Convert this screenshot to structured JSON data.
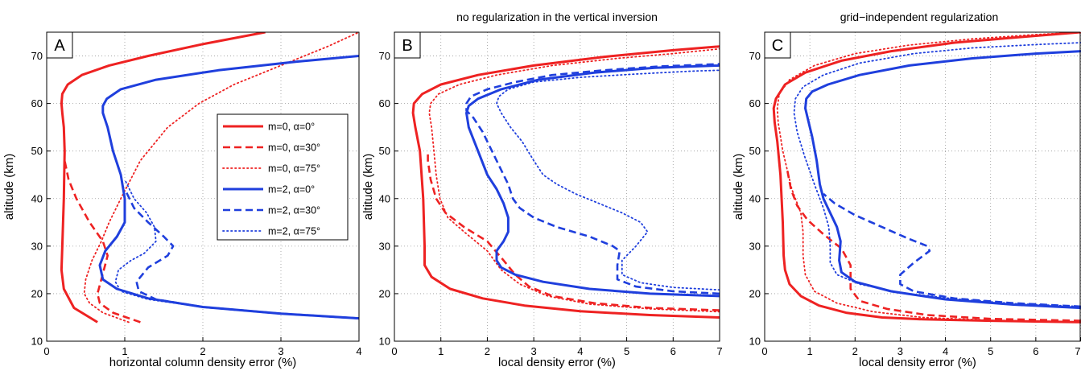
{
  "chart_data": [
    {
      "type": "line",
      "panel_label": "A",
      "title": "",
      "xlabel": "horizontal column density error (%)",
      "ylabel": "altitude (km)",
      "xlim": [
        0,
        4
      ],
      "ylim": [
        10,
        75
      ],
      "xticks": [
        0,
        1,
        2,
        3,
        4
      ],
      "yticks": [
        10,
        20,
        30,
        40,
        50,
        60,
        70
      ],
      "grid": true,
      "legend": "right",
      "series": [
        {
          "name": "m=0, α=0°",
          "color": "#ee2222",
          "dash": "solid",
          "width": 3,
          "x": [
            0.65,
            0.35,
            0.22,
            0.19,
            0.2,
            0.22,
            0.23,
            0.22,
            0.2,
            0.19,
            0.2,
            0.27,
            0.45,
            0.8,
            1.3,
            2.0,
            2.8
          ],
          "y": [
            14,
            17,
            21,
            25,
            30,
            40,
            50,
            55,
            58,
            60,
            62,
            64,
            66,
            68,
            70,
            72.5,
            75
          ]
        },
        {
          "name": "m=0, α=30°",
          "color": "#ee2222",
          "dash": "dashed",
          "width": 2.6,
          "x": [
            1.2,
            0.85,
            0.68,
            0.65,
            0.7,
            0.78,
            0.72,
            0.55,
            0.38,
            0.28,
            0.23
          ],
          "y": [
            14,
            16,
            18,
            20,
            23,
            28,
            31,
            35,
            40,
            44,
            48
          ]
        },
        {
          "name": "m=0, α=75°",
          "color": "#ee2222",
          "dash": "dotted",
          "width": 1.8,
          "x": [
            1.05,
            0.72,
            0.55,
            0.48,
            0.5,
            0.58,
            0.7,
            0.8,
            0.95,
            1.2,
            1.55,
            1.95,
            2.4,
            3.0,
            3.6,
            4.0
          ],
          "y": [
            14,
            16,
            18,
            20,
            23,
            27,
            31,
            35,
            40,
            48,
            55,
            60,
            64,
            68,
            72,
            75
          ]
        },
        {
          "name": "m=2, α=0°",
          "color": "#1f3fdd",
          "dash": "solid",
          "width": 3,
          "x": [
            4.0,
            3.0,
            2.0,
            1.3,
            0.9,
            0.72,
            0.68,
            0.75,
            0.9,
            1.0,
            1.0,
            0.95,
            0.85,
            0.78,
            0.72,
            0.72,
            0.77,
            0.95,
            1.4,
            2.2,
            3.2,
            4.0
          ],
          "y": [
            14.8,
            15.8,
            17.2,
            19,
            21,
            23,
            26,
            29,
            32,
            35,
            40,
            45,
            50,
            55,
            58,
            59.5,
            61,
            63,
            65,
            67,
            68.8,
            70
          ]
        },
        {
          "name": "m=2, α=30°",
          "color": "#1f3fdd",
          "dash": "dashed",
          "width": 2.6,
          "x": [
            4.0,
            3.0,
            2.0,
            1.4,
            1.18,
            1.15,
            1.3,
            1.55,
            1.62,
            1.5,
            1.3,
            1.12,
            1.0
          ],
          "y": [
            14.8,
            15.8,
            17.2,
            18.8,
            20.5,
            22.5,
            25.5,
            28,
            30,
            32,
            35,
            38,
            42
          ]
        },
        {
          "name": "m=2, α=75°",
          "color": "#1f3fdd",
          "dash": "dotted",
          "width": 1.8,
          "x": [
            4.0,
            3.0,
            2.0,
            1.3,
            0.95,
            0.88,
            0.92,
            1.08,
            1.25,
            1.4,
            1.38,
            1.28,
            1.12,
            1.0
          ],
          "y": [
            14.8,
            15.8,
            17.2,
            18.8,
            20.5,
            22.5,
            25,
            27,
            28.5,
            31,
            34,
            37,
            40,
            44
          ]
        }
      ],
      "legend_entries": [
        "m=0, α=0°",
        "m=0, α=30°",
        "m=0, α=75°",
        "m=2, α=0°",
        "m=2, α=30°",
        "m=2, α=75°"
      ]
    },
    {
      "type": "line",
      "panel_label": "B",
      "title": "no regularization in the vertical inversion",
      "xlabel": "local density error (%)",
      "ylabel": "altitude (km)",
      "xlim": [
        0,
        7
      ],
      "ylim": [
        10,
        75
      ],
      "xticks": [
        0,
        1,
        2,
        3,
        4,
        5,
        6,
        7
      ],
      "yticks": [
        10,
        20,
        30,
        40,
        50,
        60,
        70
      ],
      "grid": true,
      "series": [
        {
          "name": "m=0, α=0°",
          "color": "#ee2222",
          "dash": "solid",
          "width": 3,
          "x": [
            7.0,
            5.5,
            4.0,
            2.8,
            1.9,
            1.2,
            0.8,
            0.65,
            0.65,
            0.62,
            0.55,
            0.45,
            0.4,
            0.42,
            0.6,
            1.0,
            1.8,
            3.0,
            4.5,
            6.0,
            7.0
          ],
          "y": [
            15,
            15.5,
            16.3,
            17.5,
            19,
            21,
            23.5,
            26,
            30,
            40,
            50,
            55,
            58,
            60,
            62,
            64,
            66,
            68,
            69.8,
            71.2,
            72
          ]
        },
        {
          "name": "m=0, α=30°",
          "color": "#ee2222",
          "dash": "dashed",
          "width": 2.6,
          "x": [
            7.0,
            5.5,
            4.3,
            3.4,
            2.9,
            2.6,
            2.35,
            2.0,
            1.5,
            1.1,
            0.9,
            0.78,
            0.72,
            0.72
          ],
          "y": [
            16.5,
            17,
            18,
            19.5,
            21.5,
            24,
            27,
            31,
            34,
            37,
            40,
            44,
            48,
            50
          ]
        },
        {
          "name": "m=0, α=75°",
          "color": "#ee2222",
          "dash": "dotted",
          "width": 1.8,
          "x": [
            7.0,
            5.5,
            4.2,
            3.3,
            2.7,
            2.3,
            2.0,
            1.5,
            1.15,
            0.98,
            0.9,
            0.85,
            0.8,
            0.75,
            0.78,
            0.95,
            1.4,
            2.2,
            3.4,
            4.8,
            6.0,
            7.0
          ],
          "y": [
            16.2,
            16.8,
            17.8,
            19.5,
            22,
            25,
            29,
            33,
            36,
            40,
            45,
            50,
            55,
            58,
            60,
            62,
            64,
            66,
            68,
            69.5,
            70.5,
            71.5
          ]
        },
        {
          "name": "m=2, α=0°",
          "color": "#1f3fdd",
          "dash": "solid",
          "width": 3,
          "x": [
            7.0,
            5.5,
            4.2,
            3.2,
            2.6,
            2.3,
            2.2,
            2.2,
            2.35,
            2.45,
            2.45,
            2.35,
            2.2,
            2.0,
            1.8,
            1.6,
            1.55,
            1.6,
            1.8,
            2.3,
            3.1,
            4.3,
            5.6,
            7.0
          ],
          "y": [
            19.5,
            20,
            21,
            22.5,
            24,
            25.5,
            27,
            29,
            31,
            33,
            36,
            39,
            42,
            45,
            50,
            55,
            58,
            59.5,
            61,
            63,
            65,
            66.5,
            67.5,
            68
          ]
        },
        {
          "name": "m=2, α=30°",
          "color": "#1f3fdd",
          "dash": "dashed",
          "width": 2.6,
          "x": [
            7.0,
            6.0,
            5.2,
            4.8,
            4.8,
            4.85,
            4.7,
            4.2,
            3.5,
            3.0,
            2.7,
            2.55,
            2.45,
            2.3,
            2.1,
            1.9,
            1.7,
            1.55,
            1.55,
            1.65,
            2.0,
            2.6,
            3.4,
            4.5,
            5.7,
            7.0
          ],
          "y": [
            20,
            20.5,
            21.5,
            23,
            26,
            29,
            30,
            32,
            34,
            36,
            38,
            40,
            43,
            46,
            50,
            54,
            57,
            58.5,
            60,
            61.5,
            63,
            64.5,
            66,
            67,
            67.8,
            68.3
          ]
        },
        {
          "name": "m=2, α=75°",
          "color": "#1f3fdd",
          "dash": "dotted",
          "width": 1.8,
          "x": [
            7.0,
            6.0,
            5.3,
            4.9,
            4.9,
            5.2,
            5.45,
            5.3,
            4.9,
            4.4,
            3.9,
            3.5,
            3.2,
            3.0,
            2.75,
            2.5,
            2.3,
            2.2,
            2.25,
            2.45,
            3.0,
            4.0,
            5.2,
            6.4,
            7.0
          ],
          "y": [
            20.8,
            21.3,
            22.3,
            24,
            27,
            30,
            33,
            35,
            37,
            39,
            41,
            43,
            45,
            48,
            52,
            55,
            58,
            60,
            61.5,
            63,
            64.5,
            65.5,
            66.2,
            66.8,
            67
          ]
        }
      ]
    },
    {
      "type": "line",
      "panel_label": "C",
      "title": "grid−independent regularization",
      "xlabel": "local density error (%)",
      "ylabel": "altitude (km)",
      "xlim": [
        0,
        7
      ],
      "ylim": [
        10,
        75
      ],
      "xticks": [
        0,
        1,
        2,
        3,
        4,
        5,
        6,
        7
      ],
      "yticks": [
        10,
        20,
        30,
        40,
        50,
        60,
        70
      ],
      "grid": true,
      "series": [
        {
          "name": "m=0, α=0°",
          "color": "#ee2222",
          "dash": "solid",
          "width": 3,
          "x": [
            7.0,
            5.0,
            3.5,
            2.6,
            1.8,
            1.2,
            0.8,
            0.55,
            0.45,
            0.42,
            0.4,
            0.35,
            0.28,
            0.22,
            0.2,
            0.25,
            0.45,
            0.9,
            1.7,
            2.8,
            4.2,
            5.7,
            7.0
          ],
          "y": [
            14,
            14.3,
            14.6,
            15,
            16,
            17.5,
            19.5,
            22,
            25,
            28,
            35,
            45,
            52,
            56,
            59,
            61,
            64,
            66.5,
            69,
            71,
            72.8,
            74,
            75
          ]
        },
        {
          "name": "m=0, α=30°",
          "color": "#ee2222",
          "dash": "dashed",
          "width": 2.6,
          "x": [
            7.0,
            5.0,
            3.6,
            2.7,
            2.1,
            1.9,
            1.9,
            1.7,
            1.3,
            0.95,
            0.72,
            0.58,
            0.5
          ],
          "y": [
            14.3,
            14.7,
            15.5,
            16.8,
            18.5,
            21,
            26,
            29.5,
            32.5,
            35.5,
            38.5,
            42,
            46
          ]
        },
        {
          "name": "m=0, α=75°",
          "color": "#ee2222",
          "dash": "dotted",
          "width": 1.8,
          "x": [
            7.0,
            5.0,
            3.5,
            2.4,
            1.6,
            1.1,
            0.9,
            0.85,
            0.85,
            0.8,
            0.6,
            0.4,
            0.3,
            0.28,
            0.32,
            0.55,
            1.1,
            2.0,
            3.2,
            4.6,
            6.0,
            7.0
          ],
          "y": [
            14,
            14.4,
            15,
            16.2,
            18,
            20.5,
            24,
            28,
            33,
            37,
            42,
            50,
            56,
            59,
            62,
            65,
            68,
            70.5,
            72.3,
            73.6,
            74.5,
            75
          ]
        },
        {
          "name": "m=2, α=0°",
          "color": "#1f3fdd",
          "dash": "solid",
          "width": 3,
          "x": [
            7.0,
            5.5,
            4.0,
            2.8,
            2.0,
            1.7,
            1.65,
            1.68,
            1.6,
            1.45,
            1.3,
            1.22,
            1.15,
            1.05,
            0.95,
            0.9,
            0.92,
            1.05,
            1.4,
            2.1,
            3.2,
            4.6,
            6.0,
            7.0
          ],
          "y": [
            17,
            17.7,
            18.8,
            20.5,
            22.5,
            24.5,
            27,
            31,
            34,
            37,
            40,
            43,
            48,
            53,
            57,
            59,
            61,
            62.5,
            64,
            66,
            68,
            69.5,
            70.5,
            71
          ]
        },
        {
          "name": "m=2, α=30°",
          "color": "#1f3fdd",
          "dash": "dashed",
          "width": 2.6,
          "x": [
            7.0,
            5.5,
            4.2,
            3.3,
            3.0,
            3.0,
            3.3,
            3.65,
            3.6,
            3.2,
            2.6,
            2.0,
            1.55,
            1.3
          ],
          "y": [
            17.3,
            18,
            19,
            20.5,
            22,
            24,
            26.5,
            29,
            30,
            31.5,
            34,
            36.5,
            39,
            41
          ]
        },
        {
          "name": "m=2, α=75°",
          "color": "#1f3fdd",
          "dash": "dotted",
          "width": 1.8,
          "x": [
            7.0,
            5.5,
            4.2,
            3.0,
            2.1,
            1.6,
            1.45,
            1.45,
            1.42,
            1.3,
            1.1,
            0.88,
            0.72,
            0.65,
            0.68,
            0.85,
            1.3,
            2.1,
            3.3,
            4.6,
            6.0,
            7.0
          ],
          "y": [
            17.3,
            17.9,
            18.9,
            20.2,
            22,
            24,
            26.5,
            30,
            34,
            38,
            43,
            49,
            54,
            58,
            61,
            63.5,
            66,
            68.5,
            70.5,
            71.7,
            72.4,
            72.8
          ]
        }
      ]
    }
  ]
}
